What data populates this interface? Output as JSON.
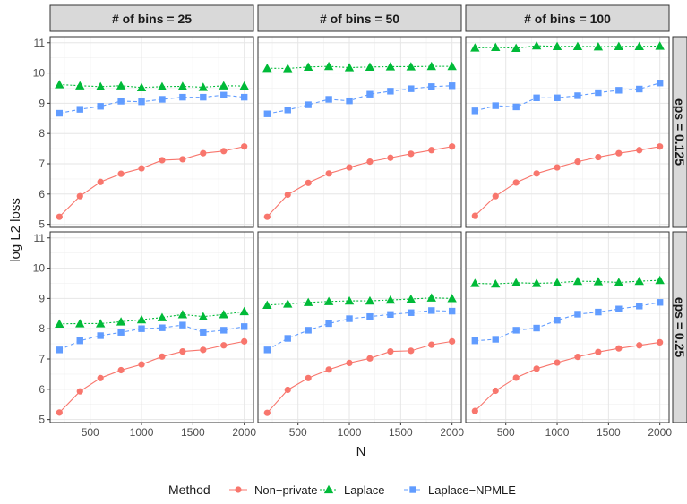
{
  "chart_data": {
    "type": "line",
    "ylabel": "log L2 loss",
    "xlabel": "N",
    "x": [
      200,
      400,
      600,
      800,
      1000,
      1200,
      1400,
      1600,
      1800,
      2000
    ],
    "x_ticks": [
      500,
      1000,
      1500,
      2000
    ],
    "y_ticks": [
      5,
      6,
      7,
      8,
      9,
      10,
      11
    ],
    "xlim": [
      110,
      2090
    ],
    "ylim": [
      4.9,
      11.2
    ],
    "grid": true,
    "legend": {
      "title": "Method",
      "position": "bottom"
    },
    "columns": [
      "# of bins = 25",
      "# of bins = 50",
      "# of bins = 100"
    ],
    "rows": [
      "eps = 0.125",
      "eps = 0.25"
    ],
    "series": [
      {
        "name": "Non−private",
        "color": "#F8766D",
        "marker": "circle",
        "line": "solid"
      },
      {
        "name": "Laplace",
        "color": "#00BA38",
        "marker": "triangle",
        "line": "dotted"
      },
      {
        "name": "Laplace−NPMLE",
        "color": "#619CFF",
        "marker": "square",
        "line": "dashed"
      }
    ],
    "panels": [
      {
        "row": 0,
        "col": 0,
        "values": [
          [
            5.25,
            5.93,
            6.4,
            6.67,
            6.85,
            7.12,
            7.15,
            7.35,
            7.42,
            7.57
          ],
          [
            9.62,
            9.58,
            9.55,
            9.58,
            9.52,
            9.55,
            9.56,
            9.53,
            9.58,
            9.57
          ],
          [
            8.67,
            8.8,
            8.9,
            9.07,
            9.05,
            9.13,
            9.2,
            9.2,
            9.27,
            9.2
          ]
        ]
      },
      {
        "row": 0,
        "col": 1,
        "values": [
          [
            5.25,
            5.98,
            6.37,
            6.68,
            6.88,
            7.07,
            7.2,
            7.33,
            7.45,
            7.57
          ],
          [
            10.16,
            10.15,
            10.2,
            10.22,
            10.18,
            10.2,
            10.21,
            10.21,
            10.22,
            10.22
          ],
          [
            8.65,
            8.78,
            8.95,
            9.13,
            9.08,
            9.3,
            9.4,
            9.48,
            9.55,
            9.58
          ]
        ]
      },
      {
        "row": 0,
        "col": 2,
        "values": [
          [
            5.28,
            5.93,
            6.38,
            6.68,
            6.88,
            7.07,
            7.22,
            7.35,
            7.45,
            7.57
          ],
          [
            10.83,
            10.85,
            10.82,
            10.9,
            10.88,
            10.88,
            10.87,
            10.88,
            10.88,
            10.89
          ],
          [
            8.75,
            8.92,
            8.88,
            9.18,
            9.18,
            9.25,
            9.35,
            9.43,
            9.47,
            9.67
          ]
        ]
      },
      {
        "row": 1,
        "col": 0,
        "values": [
          [
            5.23,
            5.93,
            6.37,
            6.63,
            6.82,
            7.08,
            7.25,
            7.3,
            7.45,
            7.58
          ],
          [
            8.16,
            8.17,
            8.17,
            8.23,
            8.3,
            8.37,
            8.47,
            8.4,
            8.47,
            8.57
          ],
          [
            7.3,
            7.6,
            7.77,
            7.88,
            8.0,
            8.03,
            8.12,
            7.88,
            7.95,
            8.07
          ]
        ]
      },
      {
        "row": 1,
        "col": 1,
        "values": [
          [
            5.22,
            5.98,
            6.37,
            6.65,
            6.87,
            7.02,
            7.25,
            7.27,
            7.47,
            7.58
          ],
          [
            8.78,
            8.82,
            8.87,
            8.9,
            8.92,
            8.92,
            8.95,
            8.98,
            9.02,
            9.0
          ],
          [
            7.3,
            7.68,
            7.95,
            8.17,
            8.33,
            8.4,
            8.47,
            8.53,
            8.6,
            8.58
          ]
        ]
      },
      {
        "row": 1,
        "col": 2,
        "values": [
          [
            5.28,
            5.95,
            6.38,
            6.68,
            6.88,
            7.07,
            7.23,
            7.35,
            7.45,
            7.55
          ],
          [
            9.5,
            9.48,
            9.52,
            9.5,
            9.52,
            9.57,
            9.56,
            9.53,
            9.57,
            9.6
          ],
          [
            7.6,
            7.65,
            7.95,
            8.02,
            8.28,
            8.48,
            8.55,
            8.65,
            8.75,
            8.87
          ]
        ]
      }
    ]
  }
}
